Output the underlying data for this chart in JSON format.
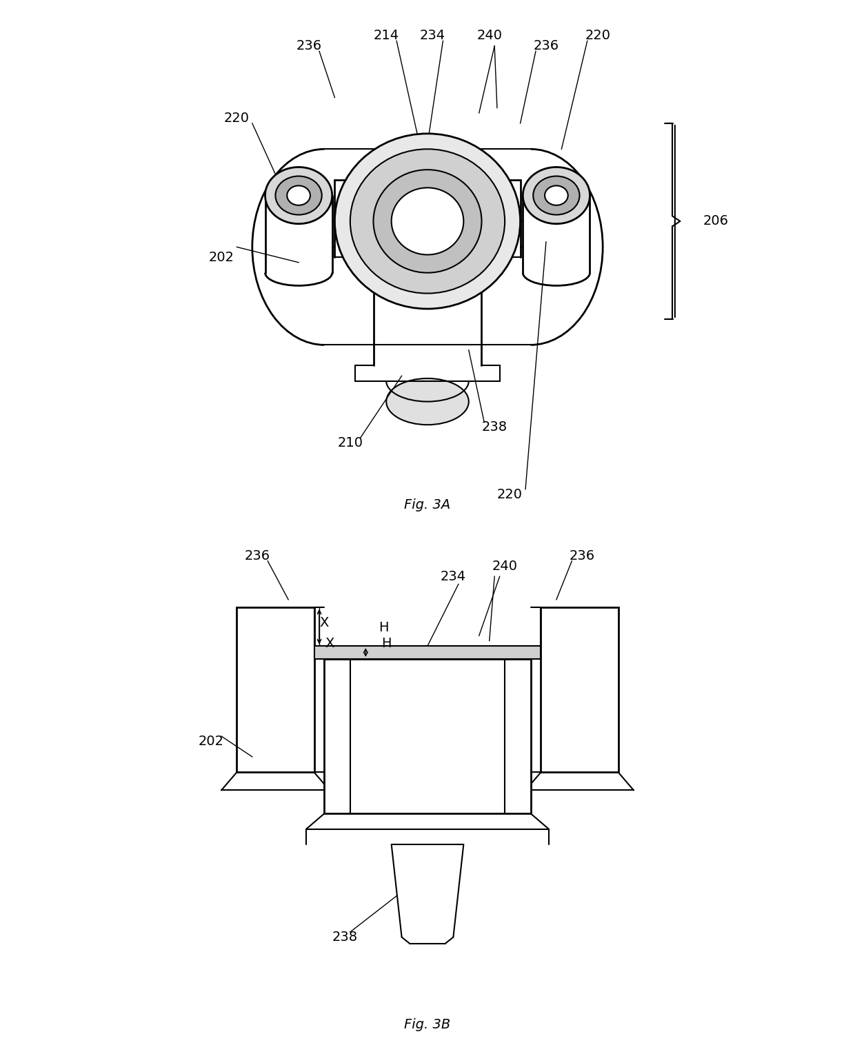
{
  "background_color": "#ffffff",
  "line_color": "#000000",
  "line_width": 1.5,
  "fig3a_caption": "Fig. 3A",
  "fig3b_caption": "Fig. 3B",
  "labels": {
    "220_left": "220",
    "220_right": "220",
    "236_left": "236",
    "236_right": "236",
    "214": "214",
    "234": "234",
    "240": "240",
    "202": "202",
    "206": "206",
    "210": "210",
    "238_3a": "238",
    "238_3b": "238",
    "202_3b": "202",
    "236_left_3b": "236",
    "236_right_3b": "236",
    "240_3b": "240",
    "234_3b": "234",
    "X": "X",
    "H": "H"
  }
}
